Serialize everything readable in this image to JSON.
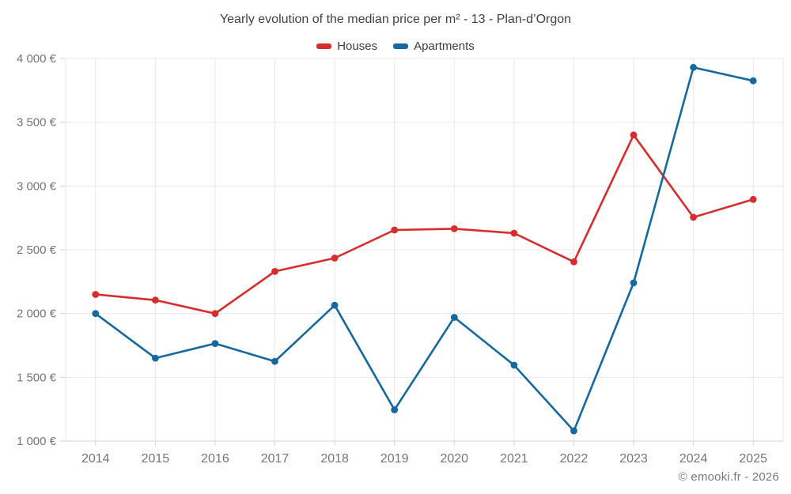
{
  "page": {
    "footer": "© emooki.fr - 2026"
  },
  "chart_data": {
    "type": "line",
    "title": "Yearly evolution of the median price per m² - 13 - Plan-d’Orgon",
    "categories": [
      "2014",
      "2015",
      "2016",
      "2017",
      "2018",
      "2019",
      "2020",
      "2021",
      "2022",
      "2023",
      "2024",
      "2025"
    ],
    "series": [
      {
        "name": "Houses",
        "color": "#d92c2c",
        "values": [
          2150,
          2105,
          2000,
          2330,
          2435,
          2655,
          2665,
          2630,
          2405,
          3400,
          2755,
          2895
        ]
      },
      {
        "name": "Apartments",
        "color": "#1569a0",
        "values": [
          2000,
          1650,
          1765,
          1625,
          2065,
          1245,
          1970,
          1595,
          1080,
          2240,
          3930,
          3825
        ]
      }
    ],
    "ylim": [
      1000,
      4000
    ],
    "yticks": [
      1000,
      1500,
      2000,
      2500,
      3000,
      3500,
      4000
    ],
    "ytick_labels": [
      "1 000 €",
      "1 500 €",
      "2 000 €",
      "2 500 €",
      "3 000 €",
      "3 500 €",
      "4 000 €"
    ],
    "xlabel": "",
    "ylabel": "",
    "unit": "€",
    "grid": true,
    "legend_position": "top"
  },
  "style": {
    "grid_color": "#e8e8e8",
    "axis_color": "#d4d4d4",
    "tick_label_color": "#757575",
    "title_color": "#424242",
    "legend_text_color": "#3c3c3c"
  }
}
